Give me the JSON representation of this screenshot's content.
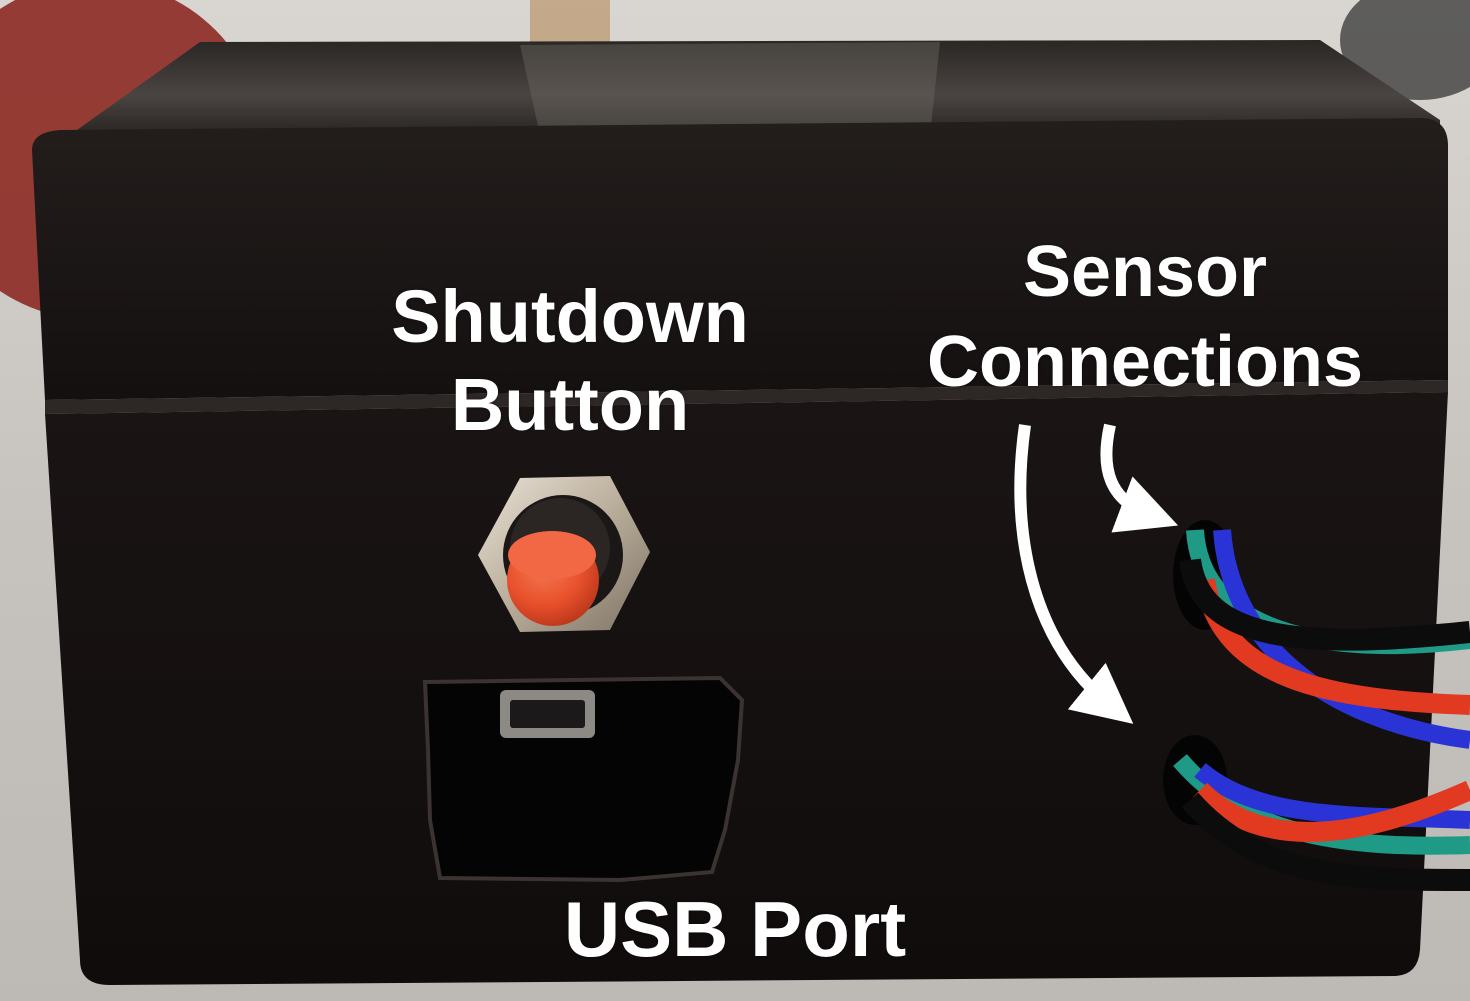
{
  "labels": {
    "shutdown_line1": "Shutdown",
    "shutdown_line2": "Button",
    "sensor_line1": "Sensor",
    "sensor_line2": "Connections",
    "usb": "USB Port"
  },
  "colors": {
    "label_text": "#ffffff",
    "enclosure": "#161211",
    "button_cap": "#e8502b",
    "wire_red": "#e23a20",
    "wire_blue": "#2a34d6",
    "wire_green": "#1f9a86",
    "wire_black": "#0c0c0c",
    "background": "#c9c5c0"
  }
}
